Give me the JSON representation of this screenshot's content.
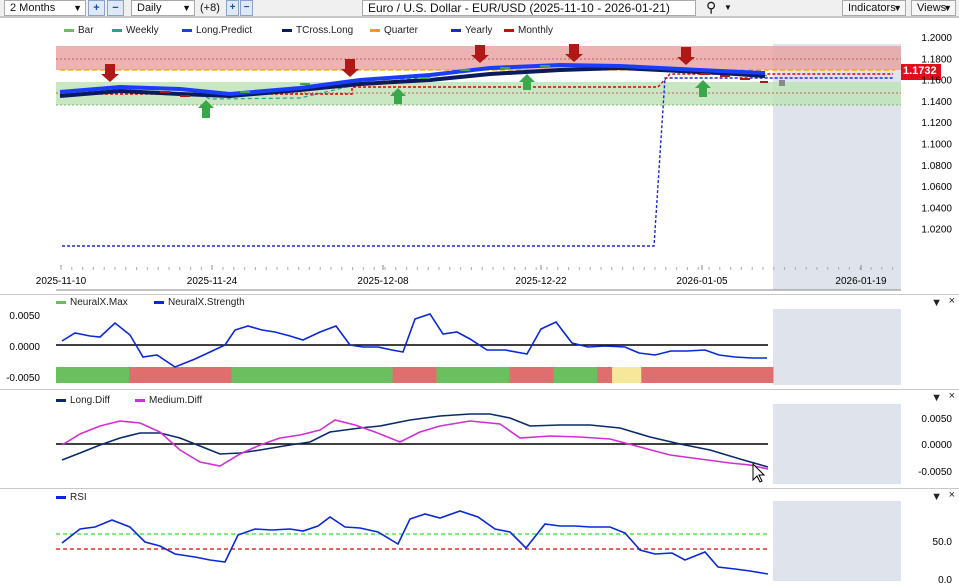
{
  "toolbar": {
    "range": "2 Months",
    "interval": "Daily",
    "offset": "(+8)",
    "plus": "+",
    "minus": "−",
    "title": "Euro / U.S. Dollar - EUR/USD (2025-11-10 - 2026-01-21)",
    "indicators": "Indicators",
    "views": "Views"
  },
  "price_panel": {
    "legend": [
      "Bar",
      "Weekly",
      "Long.Predict",
      "TCross.Long",
      "Quarter",
      "Yearly",
      "Monthly"
    ],
    "y_ticks": [
      "1.2000",
      "1.1800",
      "1.1600",
      "1.1400",
      "1.1200",
      "1.1000",
      "1.0800",
      "1.0600",
      "1.0400",
      "1.0200"
    ],
    "x_ticks": [
      "2025-11-10",
      "2025-11-24",
      "2025-12-08",
      "2025-12-22",
      "2026-01-05",
      "2026-01-19"
    ],
    "last_price": "1.1732",
    "colors": {
      "long_predict": "#1a3cff",
      "tcross": "#0a1a5a",
      "weekly": "#2aa090",
      "quarter": "#ff9900",
      "yearly": "#1a2ad0",
      "monthly": "#e00000",
      "up": "#3aa84a",
      "down": "#b01818"
    }
  },
  "neuralx_panel": {
    "legend": [
      "NeuralX.Max",
      "NeuralX.Strength"
    ],
    "y_ticks": [
      "0.0050",
      "0.0000",
      "-0.0050"
    ],
    "bar_colors": [
      "#6cbf5e",
      "#6cbf5e",
      "#6cbf5e",
      "#6cbf5e",
      "#6cbf5e",
      "#df6e6e",
      "#df6e6e",
      "#df6e6e",
      "#df6e6e",
      "#df6e6e",
      "#df6e6e",
      "#df6e6e",
      "#6cbf5e",
      "#6cbf5e",
      "#6cbf5e",
      "#6cbf5e",
      "#6cbf5e",
      "#6cbf5e",
      "#6cbf5e",
      "#6cbf5e",
      "#6cbf5e",
      "#6cbf5e",
      "#6cbf5e",
      "#df6e6e",
      "#df6e6e",
      "#df6e6e",
      "#6cbf5e",
      "#6cbf5e",
      "#6cbf5e",
      "#6cbf5e",
      "#6cbf5e",
      "#df6e6e",
      "#df6e6e",
      "#df6e6e",
      "#6cbf5e",
      "#6cbf5e",
      "#6cbf5e",
      "#df6e6e",
      "#f6e79a",
      "#f6e79a",
      "#df6e6e",
      "#df6e6e",
      "#df6e6e",
      "#df6e6e",
      "#df6e6e",
      "#df6e6e",
      "#df6e6e",
      "#df6e6e",
      "#df6e6e"
    ]
  },
  "diff_panel": {
    "legend": [
      "Long.Diff",
      "Medium.Diff"
    ],
    "y_ticks": [
      "0.0050",
      "0.0000",
      "-0.0050"
    ]
  },
  "rsi_panel": {
    "legend": [
      "RSI"
    ],
    "y_ticks": [
      "50.0",
      "0.0"
    ]
  },
  "close_glyph": "×",
  "dd_arrow": "▼",
  "search_icon": "⚲"
}
